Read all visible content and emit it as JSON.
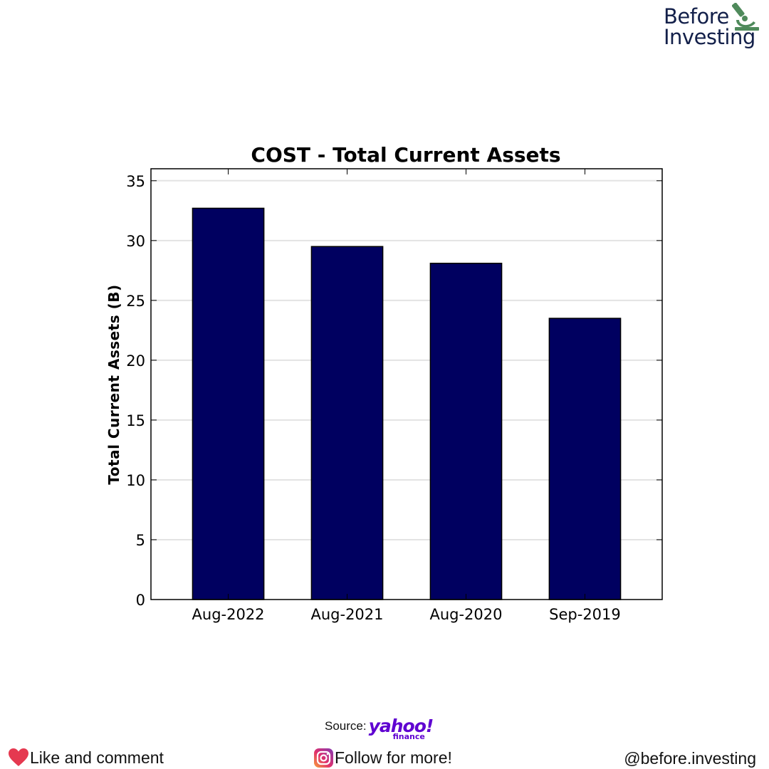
{
  "brand": {
    "line1": "Before",
    "line2": "Investing"
  },
  "chart_data": {
    "type": "bar",
    "title": "COST - Total Current Assets",
    "xlabel": "",
    "ylabel": "Total Current Assets (B)",
    "categories": [
      "Aug-2022",
      "Aug-2021",
      "Aug-2020",
      "Sep-2019"
    ],
    "values": [
      32.7,
      29.5,
      28.1,
      23.5
    ],
    "ylim": [
      0,
      36
    ],
    "yticks": [
      0,
      5,
      10,
      15,
      20,
      25,
      30,
      35
    ],
    "grid": "horizontal",
    "bar_color": "#000060"
  },
  "footer": {
    "source_label": "Source:",
    "source_brand": "yahoo!",
    "source_brand_sub": "finance",
    "like_text": "Like and comment",
    "follow_text": "Follow for more!",
    "handle": "@before.investing"
  },
  "colors": {
    "brand_text": "#13204a",
    "brand_icon": "#4f8a5b",
    "heart": "#e53950",
    "yahoo": "#5f01d1"
  },
  "icons": {
    "brand": "microscope-icon",
    "like": "heart-icon",
    "follow": "instagram-icon"
  }
}
